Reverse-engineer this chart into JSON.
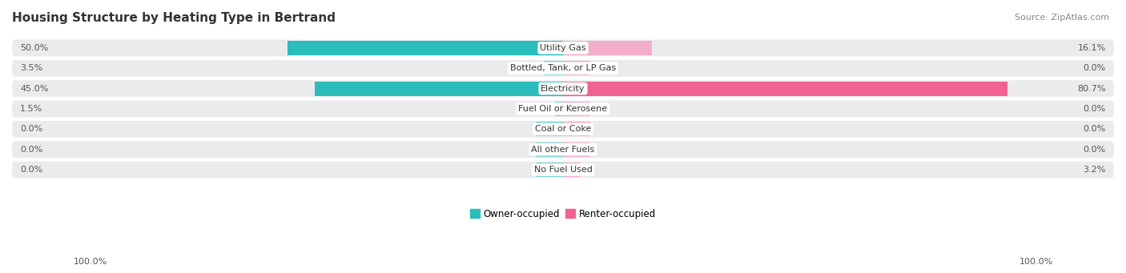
{
  "title": "Housing Structure by Heating Type in Bertrand",
  "source": "Source: ZipAtlas.com",
  "categories": [
    "Utility Gas",
    "Bottled, Tank, or LP Gas",
    "Electricity",
    "Fuel Oil or Kerosene",
    "Coal or Coke",
    "All other Fuels",
    "No Fuel Used"
  ],
  "owner_values": [
    50.0,
    3.5,
    45.0,
    1.5,
    0.0,
    0.0,
    0.0
  ],
  "renter_values": [
    16.1,
    0.0,
    80.7,
    0.0,
    0.0,
    0.0,
    3.2
  ],
  "owner_color_strong": "#2BBCBC",
  "owner_color_light": "#7DD5D5",
  "renter_color_strong": "#F06292",
  "renter_color_light": "#F4AECA",
  "row_bg_color": "#EBEBEE",
  "bar_bg_color": "#DDDDE2",
  "legend_owner": "Owner-occupied",
  "legend_renter": "Renter-occupied",
  "xlim": 100,
  "min_bar_display": 5,
  "figsize": [
    14.06,
    3.41
  ],
  "dpi": 100
}
